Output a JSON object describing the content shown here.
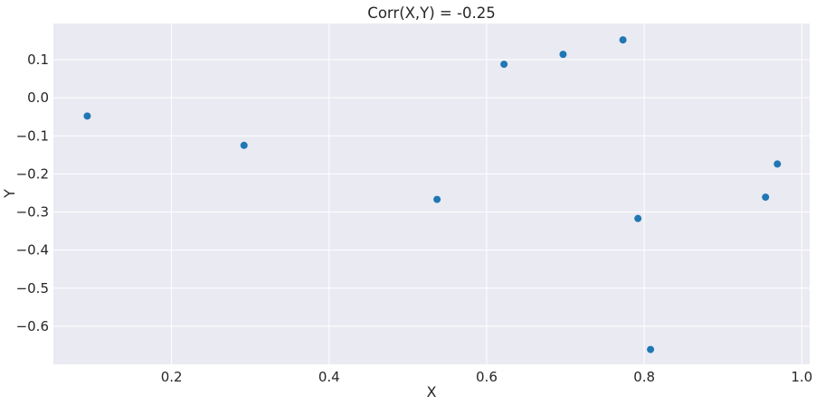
{
  "chart_data": {
    "type": "scatter",
    "title": "Corr(X,Y) = -0.25",
    "xlabel": "X",
    "ylabel": "Y",
    "xlim": [
      0.05,
      1.01
    ],
    "ylim": [
      -0.7,
      0.195
    ],
    "xticks": [
      0.2,
      0.4,
      0.6,
      0.8,
      1.0
    ],
    "xtick_labels": [
      "0.2",
      "0.4",
      "0.6",
      "0.8",
      "1.0"
    ],
    "yticks": [
      0.1,
      0.0,
      -0.1,
      -0.2,
      -0.3,
      -0.4,
      -0.5,
      -0.6
    ],
    "ytick_labels": [
      "0.1",
      "0.0",
      "−0.1",
      "−0.2",
      "−0.3",
      "−0.4",
      "−0.5",
      "−0.6"
    ],
    "grid": true,
    "style": {
      "plot_background": "#eaeaf2",
      "marker_color": "#1f77b4",
      "grid_color": "#ffffff"
    },
    "series": [
      {
        "points": [
          {
            "x": 0.093,
            "y": -0.048
          },
          {
            "x": 0.292,
            "y": -0.125
          },
          {
            "x": 0.537,
            "y": -0.267
          },
          {
            "x": 0.622,
            "y": 0.088
          },
          {
            "x": 0.697,
            "y": 0.114
          },
          {
            "x": 0.773,
            "y": 0.152
          },
          {
            "x": 0.792,
            "y": -0.317
          },
          {
            "x": 0.808,
            "y": -0.661
          },
          {
            "x": 0.954,
            "y": -0.261
          },
          {
            "x": 0.969,
            "y": -0.174
          }
        ]
      }
    ]
  }
}
